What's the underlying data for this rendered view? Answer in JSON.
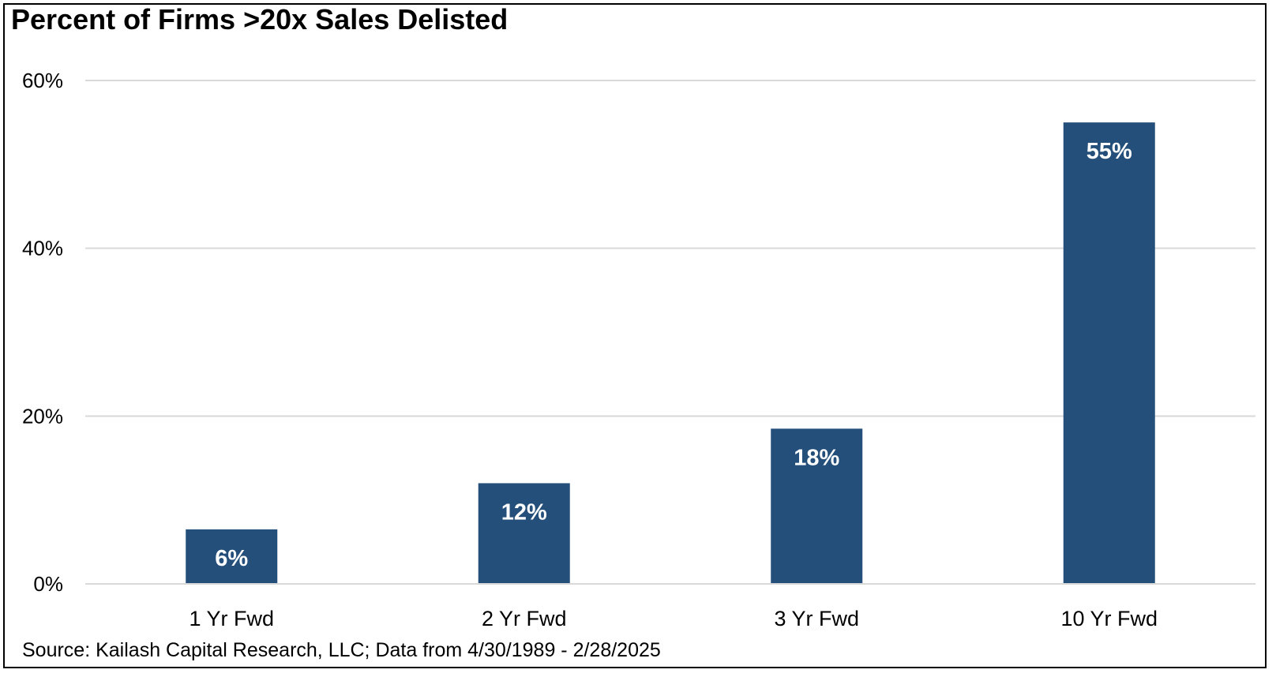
{
  "chart_data": {
    "type": "bar",
    "title": "Percent of Firms >20x Sales Delisted",
    "categories": [
      "1 Yr Fwd",
      "2 Yr Fwd",
      "3 Yr Fwd",
      "10 Yr Fwd"
    ],
    "values": [
      6.5,
      12,
      18.5,
      55
    ],
    "data_labels": [
      "6%",
      "12%",
      "18%",
      "55%"
    ],
    "ylim": [
      0,
      60
    ],
    "yticks": [
      0,
      20,
      40,
      60
    ],
    "ytick_labels": [
      "0%",
      "20%",
      "40%",
      "60%"
    ],
    "xlabel": "",
    "ylabel": "",
    "grid": true,
    "legend": "none",
    "bar_color": "#234F7A",
    "grid_color": "#D9D9D9",
    "source": "Source: Kailash Capital Research, LLC; Data from 4/30/1989 - 2/28/2025"
  }
}
